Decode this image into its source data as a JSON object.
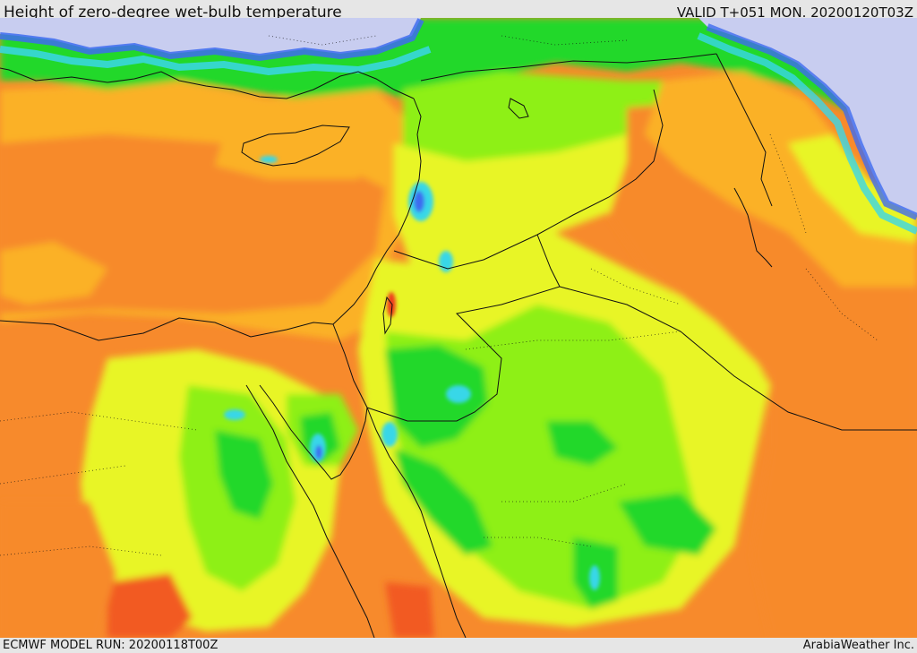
{
  "header": {
    "title": "Height of zero-degree wet-bulb temperature",
    "valid": "VALID T+051 MON. 20200120T03Z"
  },
  "footer": {
    "model_run": "ECMWF MODEL RUN: 20200118T00Z",
    "credit": "ArabiaWeather Inc."
  },
  "colors": {
    "sea_low": "#c8cdf0",
    "blue": "#3e6cf0",
    "cyan": "#39d7e8",
    "green": "#22d82a",
    "lime": "#8ef014",
    "yellow": "#e8f528",
    "amber": "#fbb128",
    "orange": "#f78a2c",
    "red_orange": "#f25a20",
    "red": "#ef3b1c",
    "border": "#111111"
  }
}
